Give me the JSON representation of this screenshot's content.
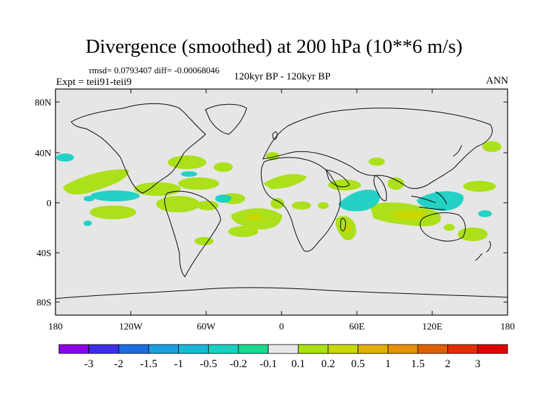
{
  "header": {
    "title": "Divergence (smoothed) at 200 hPa (10**6 m/s)",
    "stats": "rmsd= 0.0793407 diff= -0.00068046",
    "experiment": "Expt = teii91-teii9",
    "period": "120kyr BP - 120kyr BP",
    "season": "ANN"
  },
  "axes": {
    "y_ticks": [
      "80N",
      "40N",
      "0",
      "40S",
      "80S"
    ],
    "x_ticks": [
      "180",
      "120W",
      "60W",
      "0",
      "60E",
      "120E",
      "180"
    ]
  },
  "colorbar": {
    "labels": [
      "-3",
      "-2",
      "-1.5",
      "-1",
      "-0.5",
      "-0.2",
      "-0.1",
      "0.1",
      "0.2",
      "0.5",
      "1",
      "1.5",
      "2",
      "3"
    ],
    "colors": [
      "#8a00e8",
      "#3c2ee6",
      "#1a6ee0",
      "#1aa0e0",
      "#1ab8d8",
      "#1ad0c4",
      "#1ad890",
      "#e8e8e8",
      "#a8e010",
      "#c8d800",
      "#e0b000",
      "#e89000",
      "#e06000",
      "#e03000",
      "#e00000"
    ]
  },
  "map": {
    "background": "#e6e6e6",
    "positive_color": "#a8e010",
    "negative_color": "#1ad0c4"
  }
}
